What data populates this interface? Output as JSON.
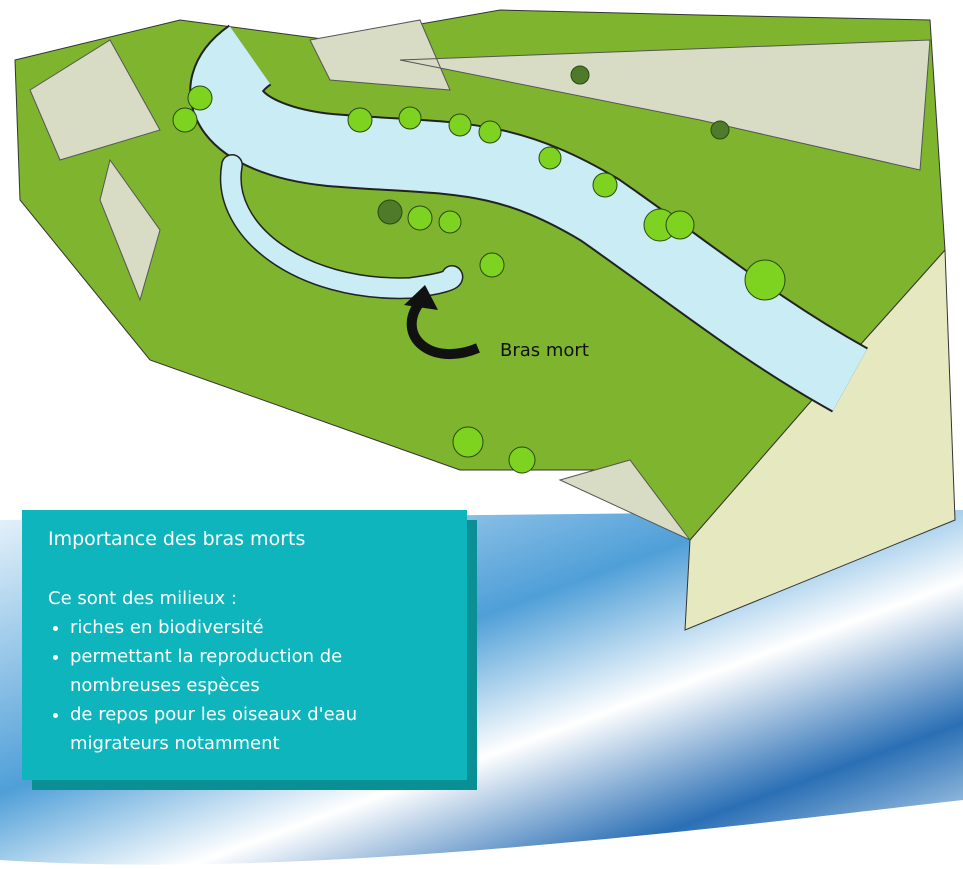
{
  "label": "Bras mort",
  "infobox": {
    "title": "Importance des bras morts",
    "intro": "Ce sont des milieux :",
    "items": [
      "riches en biodiversité",
      "permettant la reproduction de nombreuses espèces",
      "de repos pour les oiseaux d'eau migrateurs notamment"
    ]
  }
}
